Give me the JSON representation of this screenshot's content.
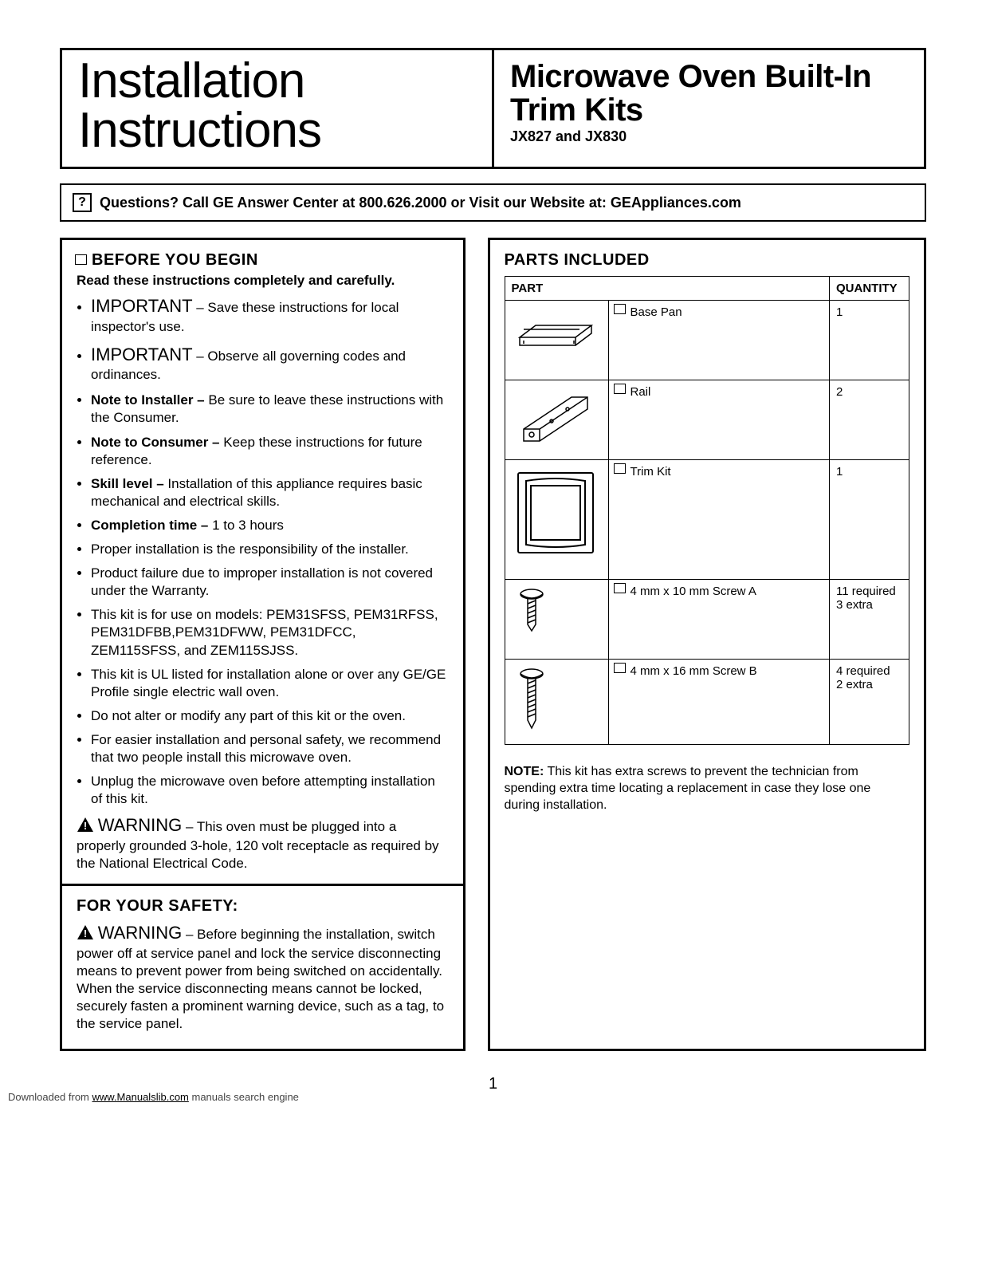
{
  "header": {
    "left": "Installation Instructions",
    "right_title": "Microwave Oven Built-In Trim Kits",
    "right_sub": "JX827 and JX830"
  },
  "question_bar": {
    "icon": "?",
    "text": "Questions? Call GE Answer Center at 800.626.2000 or Visit our Website at: GEAppliances.com"
  },
  "before": {
    "heading": "BEFORE YOU BEGIN",
    "read_line": "Read these instructions completely and carefully.",
    "items": [
      {
        "important": true,
        "lead": "IMPORTANT",
        "text": " – Save these instructions for local inspector's use."
      },
      {
        "important": true,
        "lead": "IMPORTANT",
        "text": " – Observe all governing codes and ordinances."
      },
      {
        "bold_lead": "Note to Installer – ",
        "text": "Be sure to leave these instructions with the Consumer."
      },
      {
        "bold_lead": "Note to Consumer – ",
        "text": "Keep these instructions for future reference."
      },
      {
        "bold_lead": "Skill level – ",
        "text": "Installation of this appliance requires basic mechanical and electrical skills."
      },
      {
        "bold_lead": "Completion time – ",
        "text": "1 to 3 hours"
      },
      {
        "text": "Proper installation is the responsibility of the installer."
      },
      {
        "text": "Product failure due to improper installation is not covered under the Warranty."
      },
      {
        "text": "This kit is for use on models: PEM31SFSS, PEM31RFSS, PEM31DFBB,PEM31DFWW, PEM31DFCC, ZEM115SFSS, and ZEM115SJSS."
      },
      {
        "text": "This kit is UL listed for installation alone or over any GE/GE Profile single electric wall oven."
      },
      {
        "text": "Do not alter or modify any part of this kit or the oven."
      },
      {
        "text": "For easier installation and personal safety, we recommend that two people install this microwave oven."
      },
      {
        "text": "Unplug the microwave oven before attempting installation of this kit."
      }
    ],
    "warning": {
      "lead": "WARNING",
      "text": " – This oven must be plugged into a properly grounded 3-hole, 120 volt receptacle as required by the National Electrical Code."
    }
  },
  "safety": {
    "heading": "FOR YOUR SAFETY:",
    "warning": {
      "lead": "WARNING",
      "text": " – Before beginning the installation, switch power off at service panel and lock the service disconnecting means to prevent power from being switched on accidentally. When the service disconnecting means cannot be locked, securely fasten a prominent warning device, such as a tag, to the service panel."
    }
  },
  "parts": {
    "heading": "PARTS INCLUDED",
    "columns": {
      "part": "PART",
      "qty": "QUANTITY"
    },
    "rows": [
      {
        "name": "Base Pan",
        "qty": "1",
        "svg": "basepan"
      },
      {
        "name": "Rail",
        "qty": "2",
        "svg": "rail"
      },
      {
        "name": "Trim Kit",
        "qty": "1",
        "svg": "trimkit",
        "tall": true
      },
      {
        "name": "4 mm x 10 mm Screw A",
        "qty": "11 required 3 extra",
        "svg": "screwA"
      },
      {
        "name": "4 mm x 16 mm Screw B",
        "qty": "4 required 2 extra",
        "svg": "screwB"
      }
    ],
    "note_lead": "NOTE:",
    "note": " This kit has extra screws to prevent the technician from spending extra time locating a replacement in case they lose one during installation."
  },
  "page_number": "1",
  "footer": {
    "pre": "Downloaded from ",
    "link": "www.Manualslib.com",
    "post": " manuals search engine"
  }
}
